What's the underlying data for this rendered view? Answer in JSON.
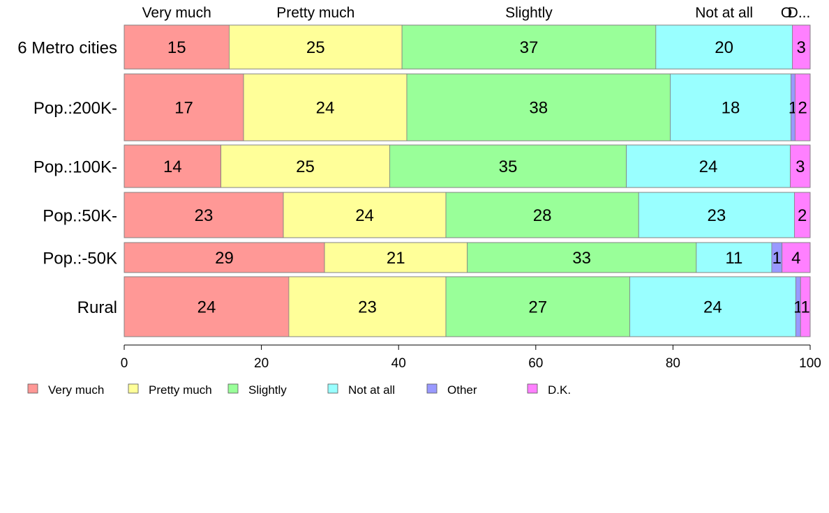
{
  "chart_data": {
    "type": "bar",
    "orientation": "horizontal",
    "stacked": true,
    "categories": [
      "6 Metro cities",
      "Pop.:200K-",
      "Pop.:100K-",
      "Pop.:50K-",
      "Pop.:-50K",
      "Rural"
    ],
    "series": [
      {
        "name": "Very much",
        "color": "#ff9896",
        "values": [
          15.3,
          17.4,
          14.1,
          23.2,
          29.2,
          24.0
        ]
      },
      {
        "name": "Pretty much",
        "color": "#ffff99",
        "values": [
          25.2,
          23.8,
          24.6,
          23.7,
          20.8,
          22.9
        ]
      },
      {
        "name": "Slightly",
        "color": "#99ff99",
        "values": [
          37.0,
          38.4,
          34.5,
          28.1,
          33.4,
          26.8
        ]
      },
      {
        "name": "Not at all",
        "color": "#99ffff",
        "values": [
          19.9,
          17.6,
          23.9,
          22.7,
          11.0,
          24.2
        ]
      },
      {
        "name": "Other",
        "color": "#9999ff",
        "values": [
          0.0,
          0.6,
          0.0,
          0.0,
          1.5,
          0.7
        ]
      },
      {
        "name": "D.K.",
        "color": "#ff80ff",
        "values": [
          2.6,
          2.2,
          2.9,
          2.3,
          4.1,
          1.4
        ]
      }
    ],
    "bar_labels": [
      [
        "15",
        "25",
        "37",
        "20",
        "",
        "3"
      ],
      [
        "17",
        "24",
        "38",
        "18",
        "1",
        "2"
      ],
      [
        "14",
        "25",
        "35",
        "24",
        "",
        "3"
      ],
      [
        "23",
        "24",
        "28",
        "23",
        "",
        "2"
      ],
      [
        "29",
        "21",
        "33",
        "11",
        "1",
        "4"
      ],
      [
        "24",
        "23",
        "27",
        "24",
        "1",
        "1"
      ]
    ],
    "top_labels": [
      "Very much",
      "Pretty much",
      "Slightly",
      "Not at all",
      "O",
      "D..."
    ],
    "xlim": [
      0,
      100
    ],
    "x_ticks": [
      "0",
      "20",
      "40",
      "60",
      "80",
      "100"
    ],
    "legend": {
      "position": "bottom",
      "entries": [
        "Very much",
        "Pretty much",
        "Slightly",
        "Not at all",
        "Other",
        "D.K."
      ]
    }
  }
}
